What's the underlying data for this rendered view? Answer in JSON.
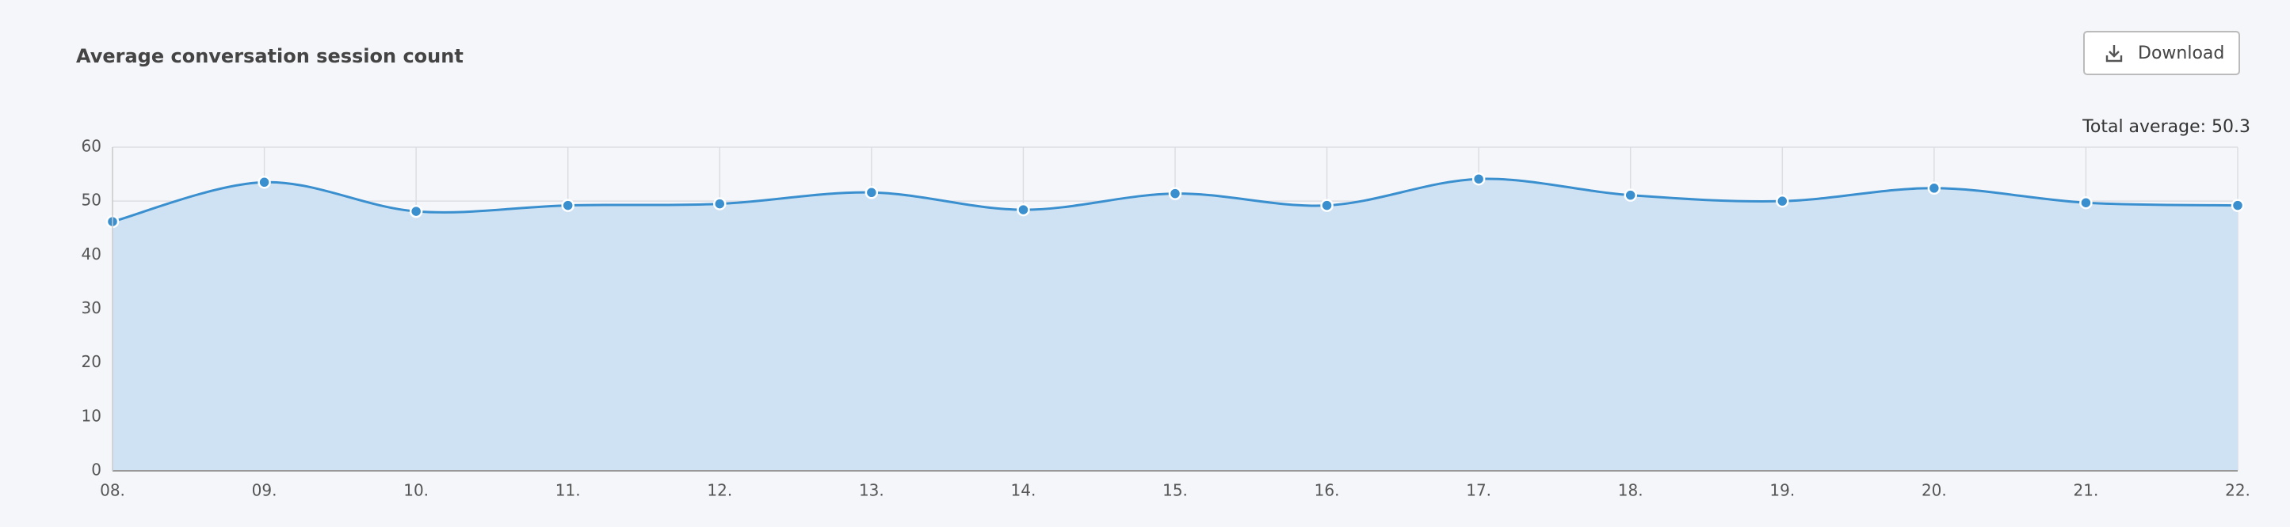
{
  "chart_data": {
    "type": "area",
    "title": "Average conversation session count",
    "button": "Download",
    "total_average": "Total average: 50.3",
    "categories": [
      "08.",
      "09.",
      "10.",
      "11.",
      "12.",
      "13.",
      "14.",
      "15.",
      "16.",
      "17.",
      "18.",
      "19.",
      "20.",
      "21.",
      "22."
    ],
    "values": [
      46.2,
      53.5,
      48.1,
      49.2,
      49.5,
      51.6,
      48.4,
      51.4,
      49.2,
      54.1,
      51.1,
      50.0,
      52.4,
      49.7,
      49.2
    ],
    "color": "#3a8fcf",
    "fill": "#cfe2f3",
    "ylim": [
      0,
      60
    ],
    "yticks": [
      0,
      10,
      20,
      30,
      40,
      50,
      60
    ],
    "grid": true
  }
}
